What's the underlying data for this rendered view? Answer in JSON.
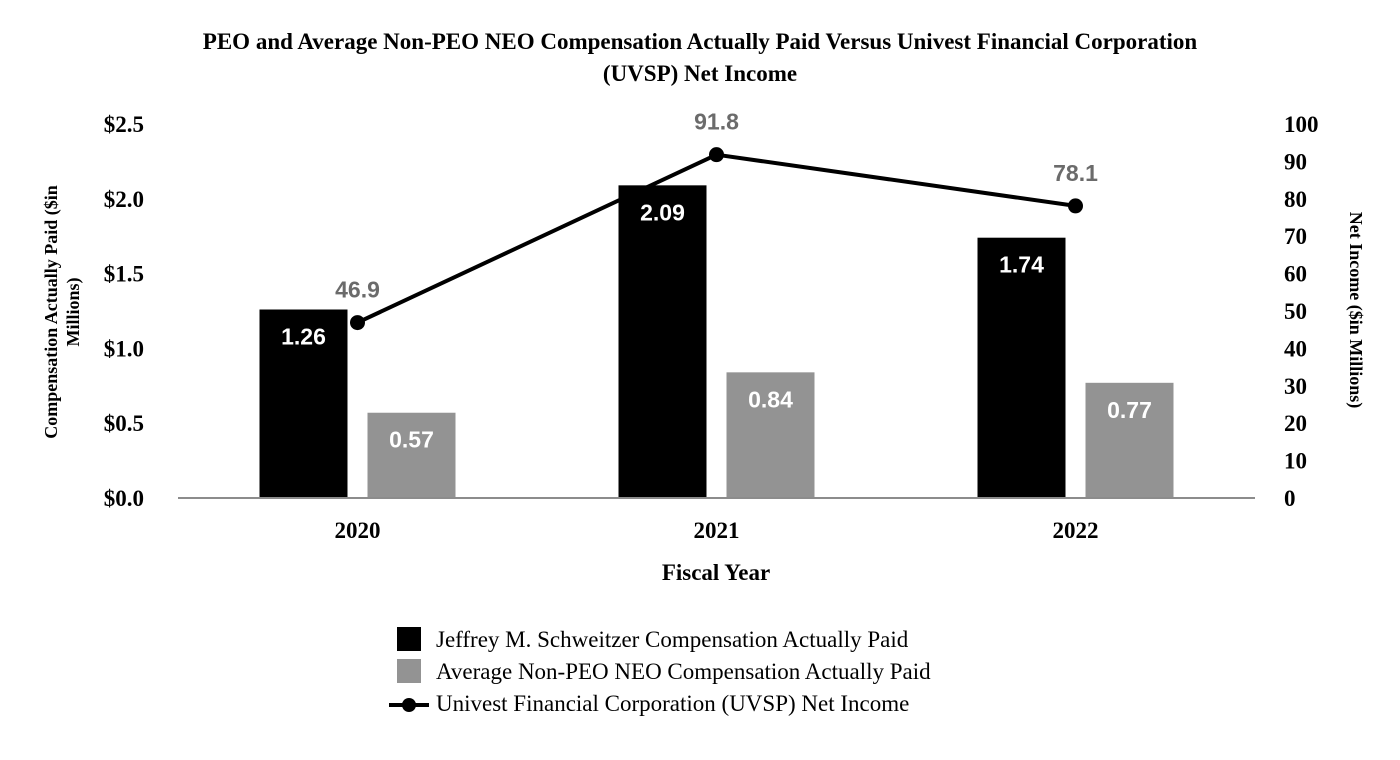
{
  "chart_data": {
    "type": "bar",
    "title_line1": "PEO and Average Non-PEO NEO Compensation Actually Paid Versus Univest Financial Corporation",
    "title_line2": "(UVSP) Net Income",
    "xlabel": "Fiscal Year",
    "ylabel_line1": "Compensation Actually Paid ($in",
    "ylabel_line2": "Millions)",
    "y2label": "Net Income ($in Millions)",
    "categories": [
      "2020",
      "2021",
      "2022"
    ],
    "ylim": [
      0,
      2.5
    ],
    "y_ticks": [
      0,
      0.5,
      1.0,
      1.5,
      2.0,
      2.5
    ],
    "y_tick_labels": [
      "$0.0",
      "$0.5",
      "$1.0",
      "$1.5",
      "$2.0",
      "$2.5"
    ],
    "y2lim": [
      0,
      100
    ],
    "y2_ticks": [
      0,
      10,
      20,
      30,
      40,
      50,
      60,
      70,
      80,
      90,
      100
    ],
    "y2_tick_labels": [
      "0",
      "10",
      "20",
      "30",
      "40",
      "50",
      "60",
      "70",
      "80",
      "90",
      "100"
    ],
    "series": [
      {
        "name": "Jeffrey M. Schweitzer Compensation Actually Paid",
        "kind": "bar",
        "axis": "left",
        "color": "#000000",
        "values": [
          1.26,
          2.09,
          1.74
        ],
        "labels": [
          "1.26",
          "2.09",
          "1.74"
        ]
      },
      {
        "name": "Average Non-PEO NEO Compensation Actually Paid",
        "kind": "bar",
        "axis": "left",
        "color": "#939393",
        "values": [
          0.57,
          0.84,
          0.77
        ],
        "labels": [
          "0.57",
          "0.84",
          "0.77"
        ]
      },
      {
        "name": "Univest Financial Corporation (UVSP) Net Income",
        "kind": "line",
        "axis": "right",
        "color": "#000000",
        "values": [
          46.9,
          91.8,
          78.1
        ],
        "labels": [
          "46.9",
          "91.8",
          "78.1"
        ]
      }
    ],
    "line_label_color": "#6b6b6b",
    "bar_label_color": "#ffffff",
    "axis_color": "#8c8c8c",
    "legend_position": "bottom-center"
  }
}
